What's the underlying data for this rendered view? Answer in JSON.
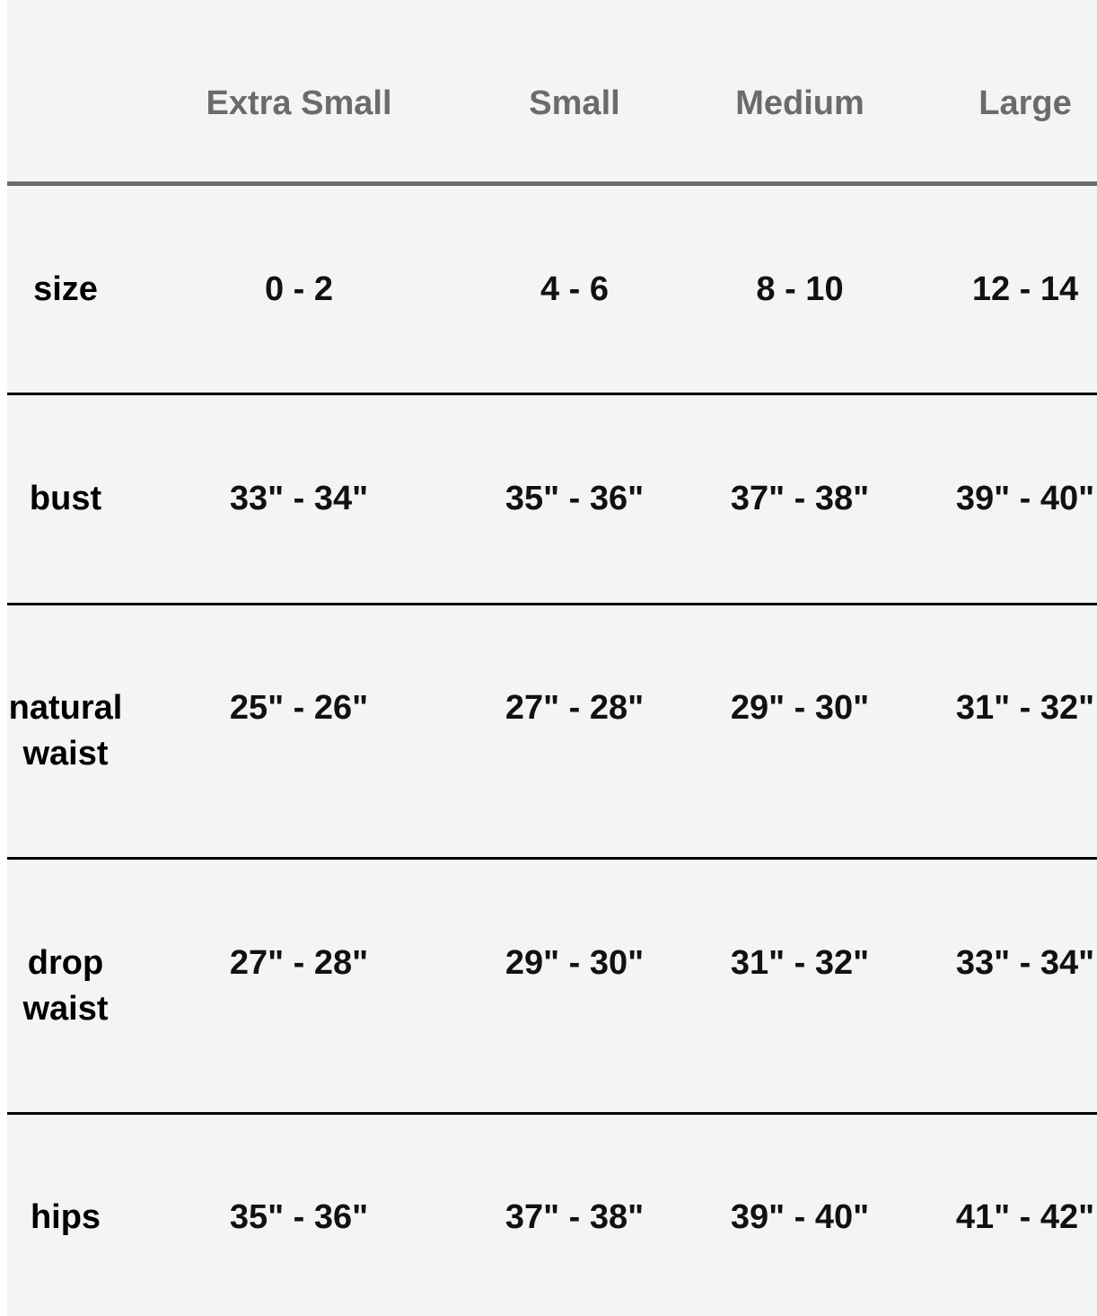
{
  "table": {
    "columns": [
      "",
      "Extra Small",
      "Small",
      "Medium",
      "Large"
    ],
    "rows": [
      {
        "label": "size",
        "values": [
          "0 - 2",
          "4 - 6",
          "8 - 10",
          "12 - 14"
        ]
      },
      {
        "label": "bust",
        "values": [
          "33\" - 34\"",
          "35\" - 36\"",
          "37\" - 38\"",
          "39\" - 40\""
        ]
      },
      {
        "label": "natural waist",
        "values": [
          "25\" - 26\"",
          "27\" - 28\"",
          "29\" - 30\"",
          "31\" - 32\""
        ]
      },
      {
        "label": "drop waist",
        "values": [
          "27\" - 28\"",
          "29\" - 30\"",
          "31\" - 32\"",
          "33\" - 34\""
        ]
      },
      {
        "label": "hips",
        "values": [
          "35\" - 36\"",
          "37\" - 38\"",
          "39\" - 40\"",
          "41\" - 42\""
        ]
      }
    ]
  },
  "colors": {
    "background": "#f4f4f4",
    "header_text": "#6b6b6b",
    "divider": "#000000"
  }
}
